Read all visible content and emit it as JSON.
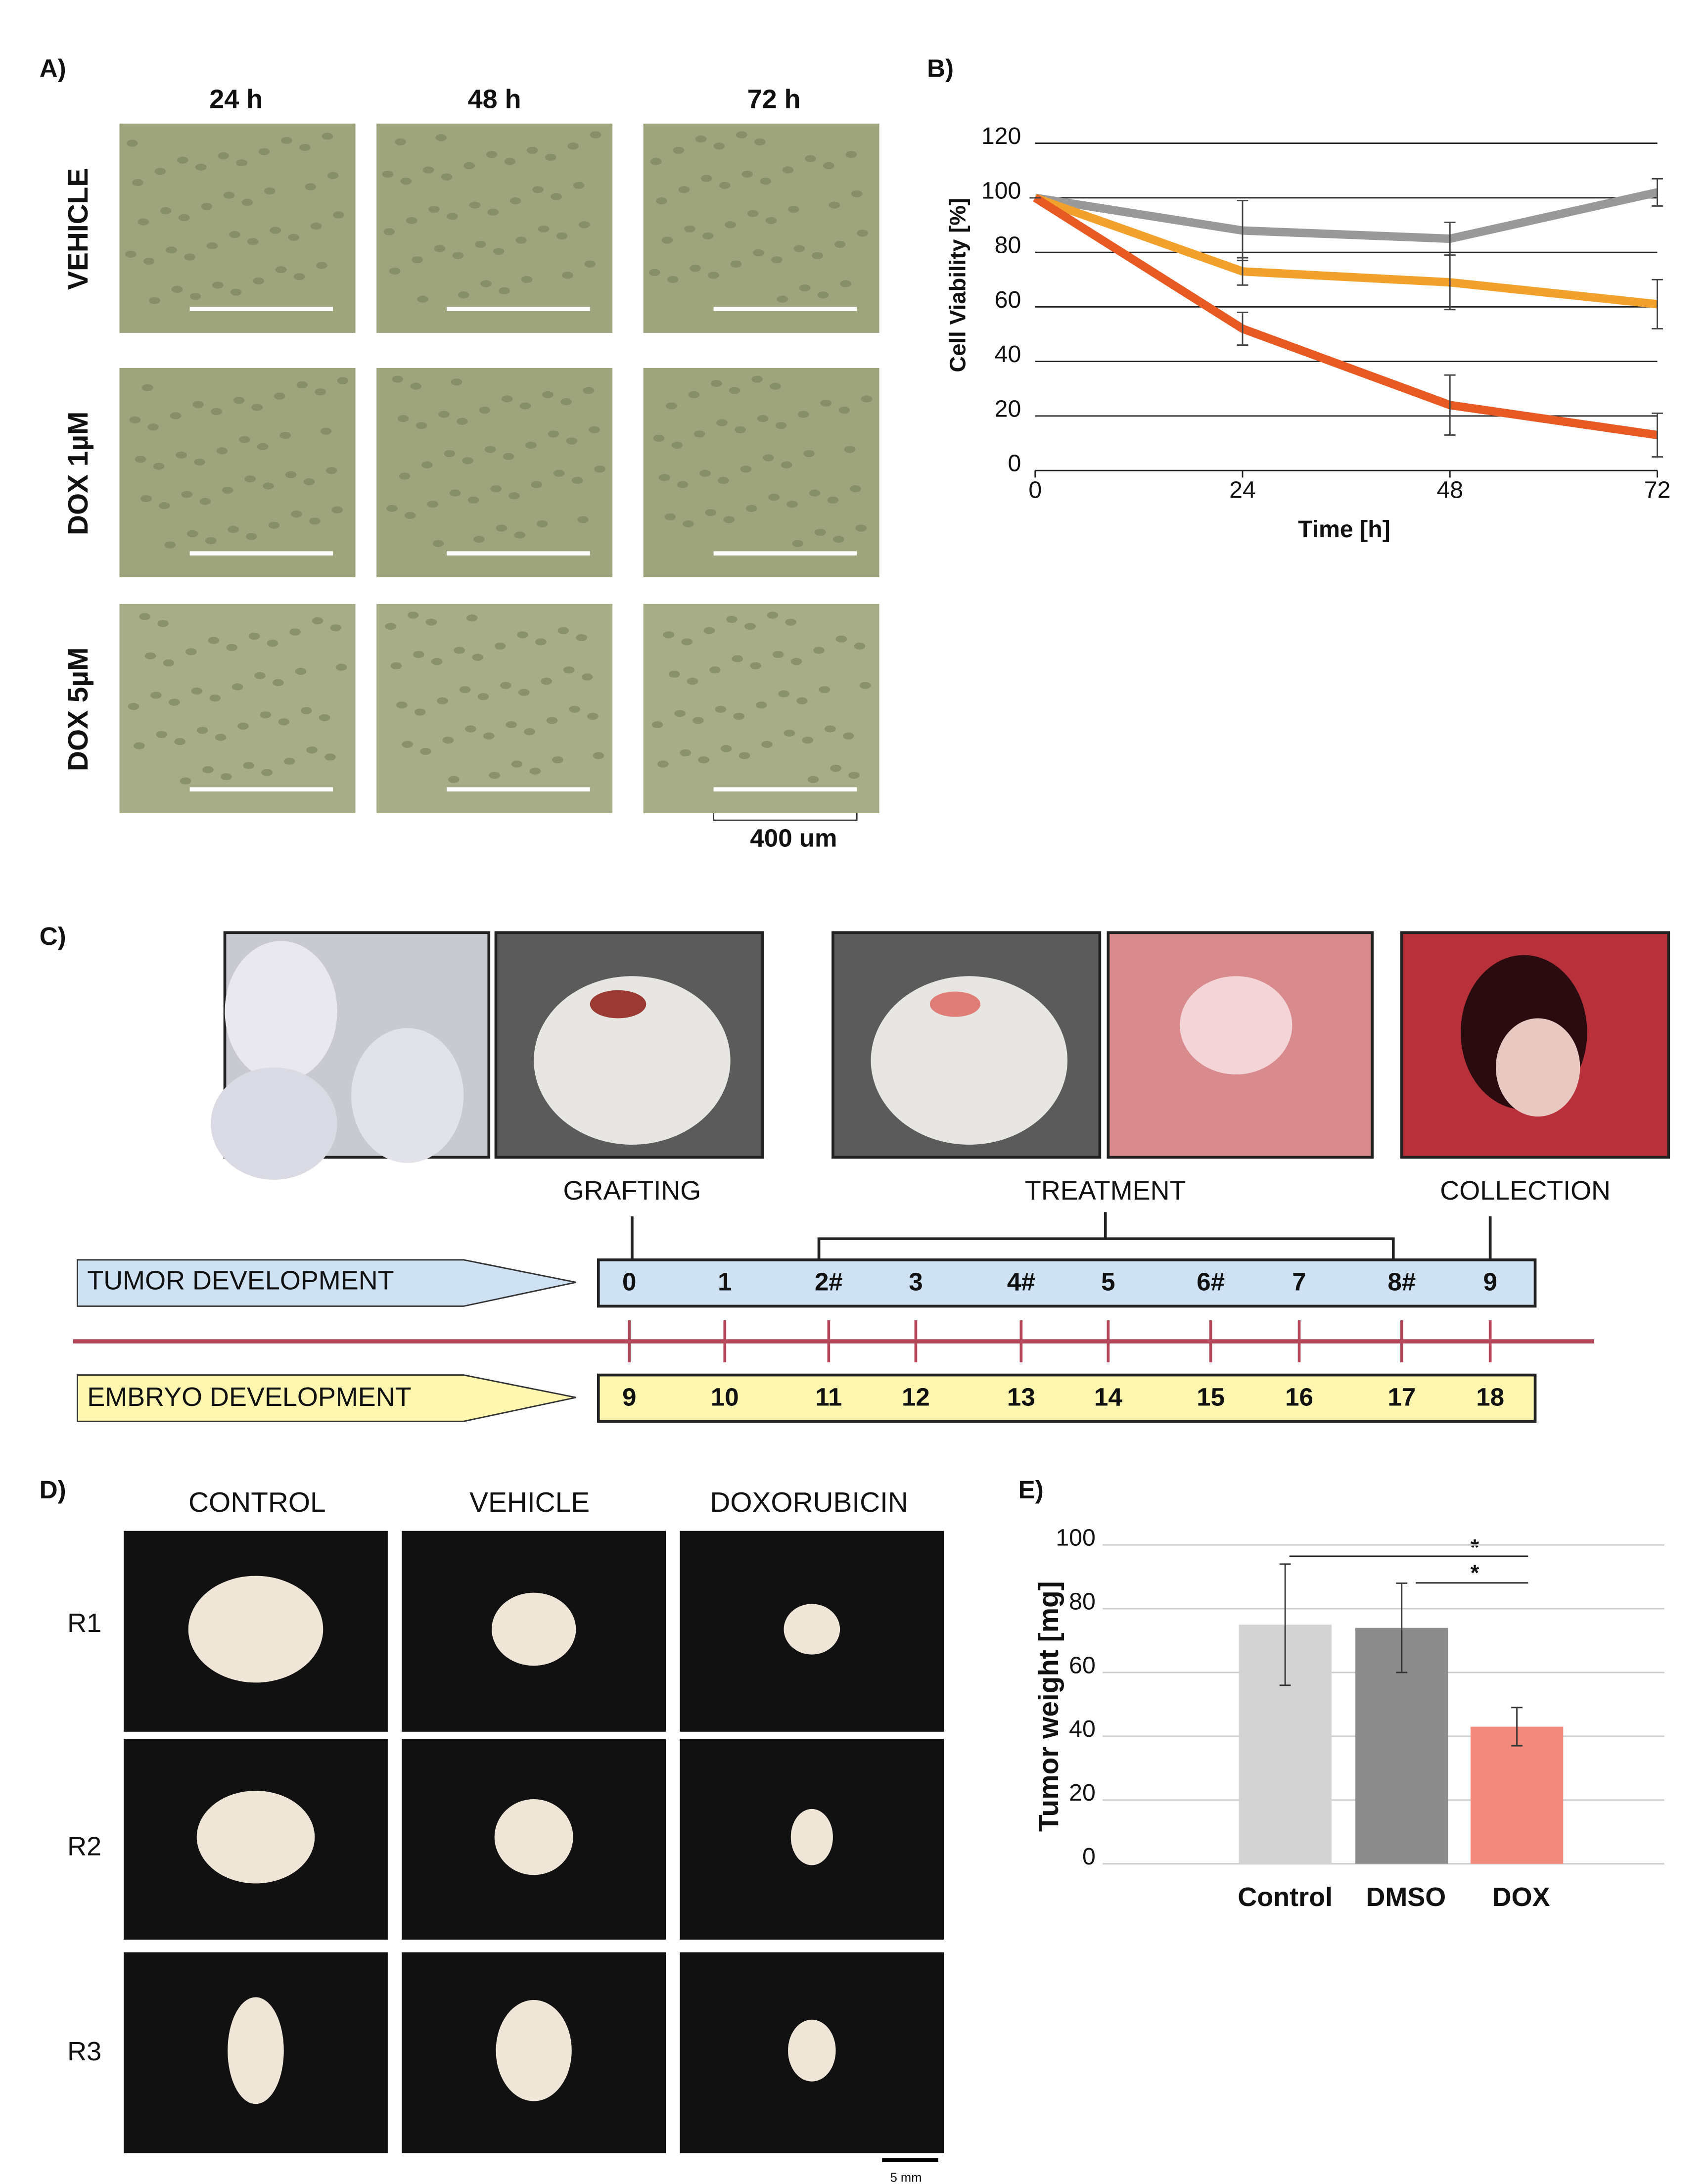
{
  "panel_a": {
    "label": "A)",
    "columns": [
      "24 h",
      "48 h",
      "72 h"
    ],
    "rows": [
      "VEHICLE",
      "DOX 1µM",
      "DOX 5µM"
    ],
    "scale": "400 um"
  },
  "chart_data": [
    {
      "type": "line",
      "panel_label": "B)",
      "ylabel": "Cell Viability [%]",
      "xlabel": "Time [h]",
      "x": [
        0,
        24,
        48,
        72
      ],
      "xlim": [
        0,
        72
      ],
      "xticks": [
        0,
        24,
        48,
        72
      ],
      "ylim": [
        0,
        120
      ],
      "yticks": [
        0,
        20,
        40,
        60,
        80,
        100,
        120
      ],
      "grid": true,
      "series": [
        {
          "color": "#999999",
          "values": [
            100,
            88,
            85,
            102
          ],
          "errors": [
            0,
            11,
            6,
            5
          ]
        },
        {
          "color": "#f2a22c",
          "values": [
            100,
            73,
            69,
            61
          ],
          "errors": [
            0,
            5,
            10,
            9
          ]
        },
        {
          "color": "#e85a24",
          "values": [
            100,
            52,
            24,
            13
          ],
          "errors": [
            0,
            6,
            11,
            8
          ]
        }
      ]
    },
    {
      "type": "bar",
      "panel_label": "E)",
      "ylabel": "Tumor weight [mg]",
      "categories": [
        "Control",
        "DMSO",
        "DOX"
      ],
      "values": [
        75,
        74,
        43
      ],
      "errors": [
        19,
        14,
        6
      ],
      "colors": [
        "#d3d3d3",
        "#8c8c8c",
        "#f28b7d"
      ],
      "ylim": [
        0,
        100
      ],
      "yticks": [
        0,
        20,
        40,
        60,
        80,
        100
      ],
      "grid": true,
      "annotations": [
        "*",
        "*"
      ]
    }
  ],
  "panel_c": {
    "label": "C)",
    "steps": [
      "GRAFTING",
      "TREATMENT",
      "COLLECTION"
    ],
    "tumor_label": "TUMOR DEVELOPMENT",
    "embryo_label": "EMBRYO DEVELOPMENT",
    "tumor_days": [
      "0",
      "1",
      "2#",
      "3",
      "4#",
      "5",
      "6#",
      "7",
      "8#",
      "9"
    ],
    "embryo_days": [
      "9",
      "10",
      "11",
      "12",
      "13",
      "14",
      "15",
      "16",
      "17",
      "18"
    ]
  },
  "panel_d": {
    "label": "D)",
    "columns": [
      "CONTROL",
      "VEHICLE",
      "DOXORUBICIN"
    ],
    "rows": [
      "R1",
      "R2",
      "R3"
    ],
    "scale": "5 mm"
  }
}
